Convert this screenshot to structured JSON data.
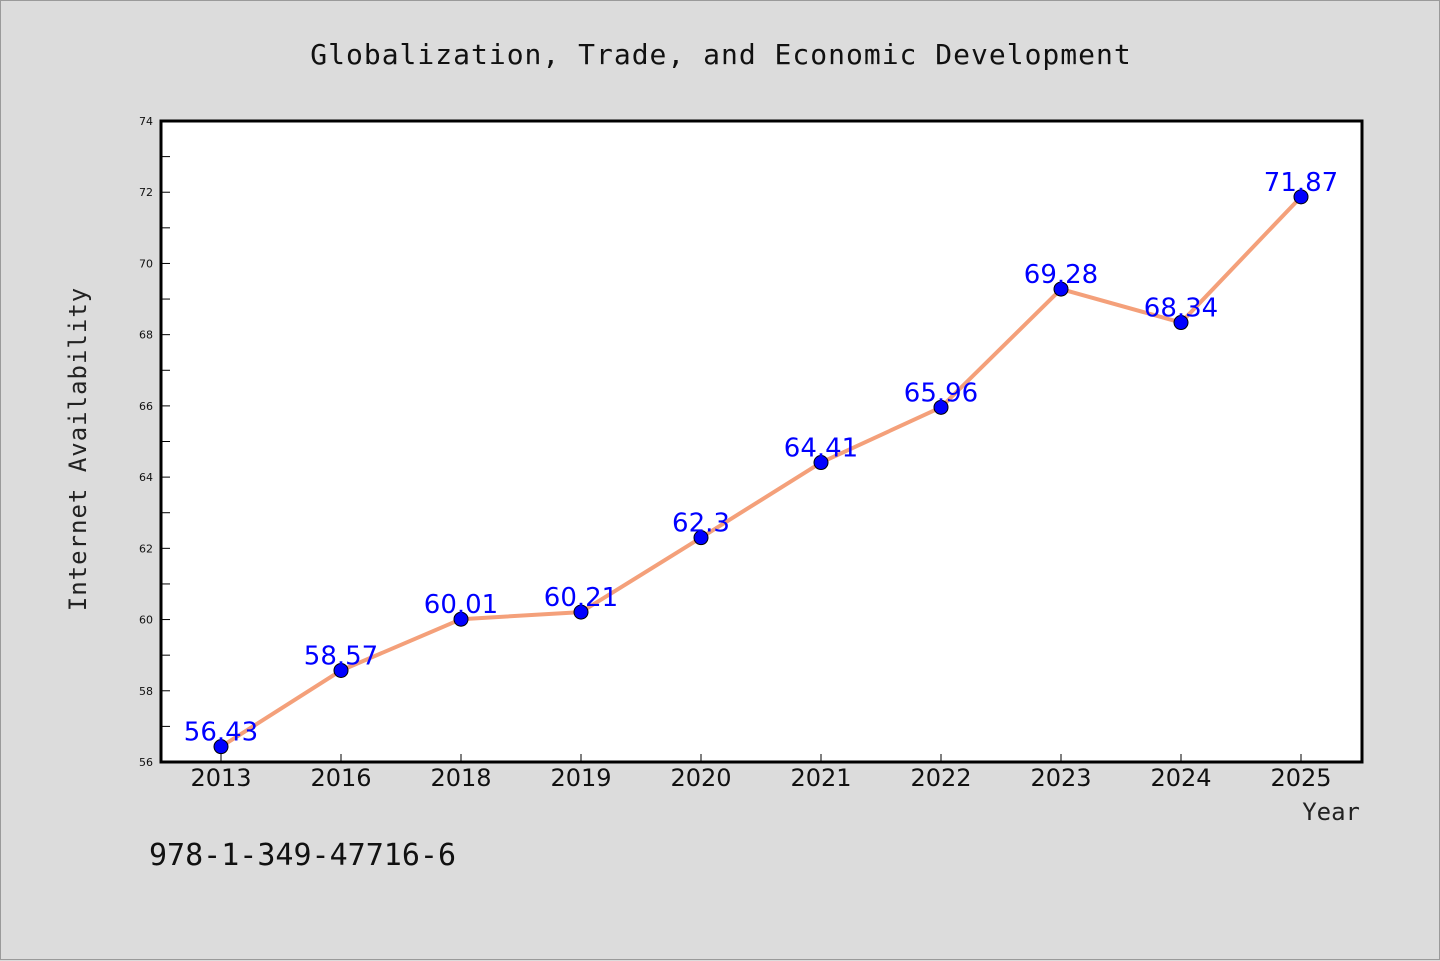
{
  "chart_data": {
    "type": "line",
    "title": "Globalization, Trade, and Economic Development",
    "xlabel": "Year",
    "ylabel": "Internet Availability",
    "categories": [
      "2013",
      "2016",
      "2018",
      "2019",
      "2020",
      "2021",
      "2022",
      "2023",
      "2024",
      "2025"
    ],
    "values": [
      56.43,
      58.57,
      60.01,
      60.21,
      62.3,
      64.41,
      65.96,
      69.28,
      68.34,
      71.87
    ],
    "data_labels": [
      "56.43",
      "58.57",
      "60.01",
      "60.21",
      "62.3",
      "64.41",
      "65.96",
      "69.28",
      "68.34",
      "71.87"
    ],
    "ylim": [
      56,
      74
    ],
    "yticks": [
      "56",
      "58",
      "60",
      "62",
      "64",
      "66",
      "68",
      "70",
      "72",
      "74"
    ],
    "grid": false,
    "line_color": "#f4a07a",
    "marker_color": "#0000ff",
    "label_color": "#0000ff"
  },
  "footer_text": "978-1-349-47716-6"
}
